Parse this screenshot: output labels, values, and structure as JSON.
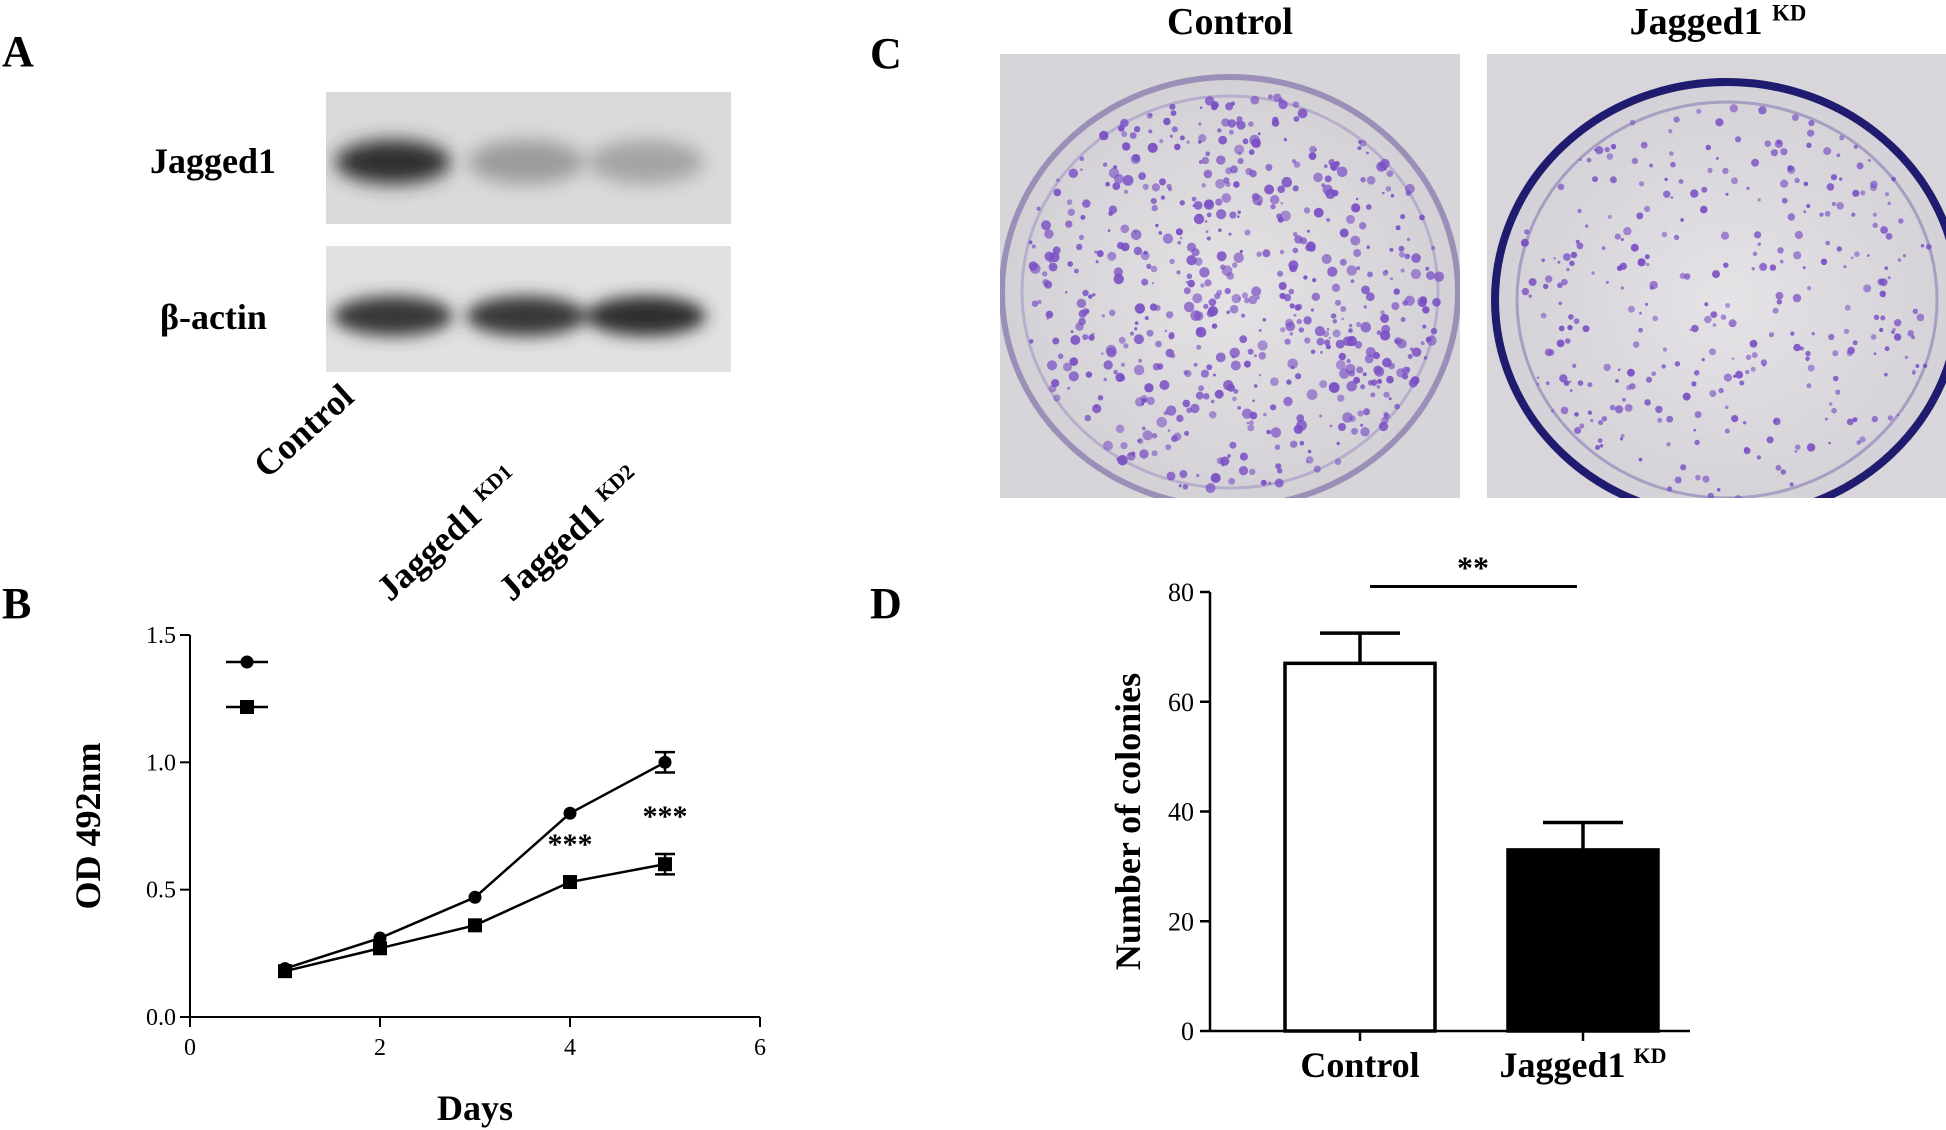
{
  "panels": {
    "A": {
      "letter": "A",
      "row_labels": [
        "Jagged1",
        "β-actin"
      ],
      "lanes": [
        {
          "name": "Control",
          "sup": ""
        },
        {
          "name": "Jagged1",
          "sup": "KD1"
        },
        {
          "name": "Jagged1",
          "sup": "KD2"
        }
      ],
      "band_intensity": {
        "Jagged1": [
          0.85,
          0.25,
          0.2
        ],
        "β-actin": [
          0.8,
          0.8,
          0.85
        ]
      }
    },
    "B": {
      "letter": "B"
    },
    "C": {
      "letter": "C",
      "dishes": [
        {
          "name": "Control",
          "sup": ""
        },
        {
          "name": "Jagged1",
          "sup": "KD"
        }
      ],
      "stain_color": "#7a4fc4"
    },
    "D": {
      "letter": "D"
    }
  },
  "chart_data": [
    {
      "type": "line",
      "panel": "B",
      "xlabel": "Days",
      "ylabel": "OD 492nm",
      "xlim": [
        0,
        6
      ],
      "ylim": [
        0,
        1.5
      ],
      "xticks": [
        "0",
        "2",
        "4",
        "6"
      ],
      "yticks": [
        "0.0",
        "0.5",
        "1.0",
        "1.5"
      ],
      "x": [
        1,
        2,
        3,
        4,
        5
      ],
      "series": [
        {
          "marker": "circle",
          "values": [
            0.19,
            0.31,
            0.47,
            0.8,
            1.0
          ],
          "errors": [
            0,
            0,
            0,
            0,
            0.04
          ]
        },
        {
          "marker": "square",
          "values": [
            0.18,
            0.27,
            0.36,
            0.53,
            0.6
          ],
          "errors": [
            0,
            0,
            0,
            0,
            0.04
          ]
        }
      ],
      "annotations": [
        {
          "x": 4,
          "y": 0.64,
          "text": "***"
        },
        {
          "x": 5,
          "y": 0.75,
          "text": "***"
        }
      ],
      "legend": "top-left"
    },
    {
      "type": "bar",
      "panel": "D",
      "ylabel": "Number of colonies",
      "ylim": [
        0,
        80
      ],
      "yticks": [
        "0",
        "20",
        "40",
        "60",
        "80"
      ],
      "categories": [
        {
          "name": "Control",
          "sup": ""
        },
        {
          "name": "Jagged1",
          "sup": "KD"
        }
      ],
      "values": [
        67,
        33
      ],
      "errors": [
        5.5,
        5
      ],
      "fills": [
        "#ffffff",
        "#000000"
      ],
      "significance": {
        "text": "**",
        "between": [
          0,
          1
        ],
        "y": 81
      }
    }
  ]
}
